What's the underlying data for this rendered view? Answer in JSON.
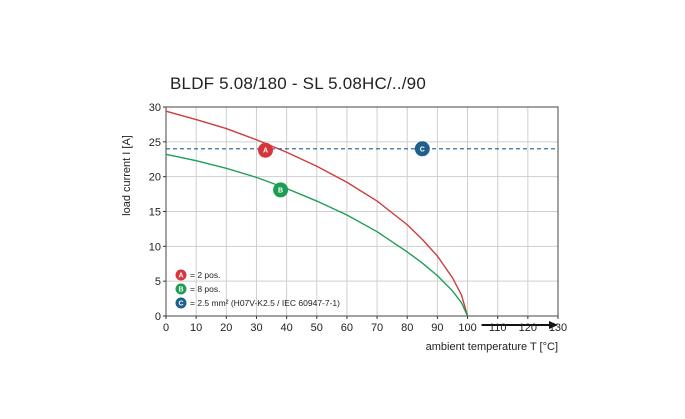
{
  "chart_data": {
    "type": "line",
    "title": "BLDF 5.08/180 - SL 5.08HC/../90",
    "xlabel": "ambient temperature T [°C]",
    "ylabel": "load current I [A]",
    "xlim": [
      0,
      130
    ],
    "ylim": [
      0,
      30
    ],
    "x_ticks": [
      "0",
      "10",
      "20",
      "30",
      "40",
      "50",
      "60",
      "70",
      "80",
      "90",
      "100",
      "110",
      "120",
      "130"
    ],
    "y_ticks": [
      "0",
      "5",
      "10",
      "15",
      "20",
      "25",
      "30"
    ],
    "grid": true,
    "series": [
      {
        "id": "A",
        "color": "#d03c3c",
        "x": [
          0,
          10,
          20,
          30,
          40,
          50,
          60,
          70,
          80,
          85,
          90,
          95,
          98,
          100
        ],
        "values": [
          29.4,
          28.2,
          26.9,
          25.3,
          23.5,
          21.5,
          19.2,
          16.5,
          13.1,
          11.0,
          8.6,
          5.5,
          3.0,
          0
        ]
      },
      {
        "id": "B",
        "color": "#1e9e55",
        "x": [
          0,
          10,
          20,
          30,
          40,
          50,
          60,
          70,
          80,
          85,
          90,
          95,
          98,
          100
        ],
        "values": [
          23.2,
          22.3,
          21.2,
          19.9,
          18.3,
          16.5,
          14.5,
          12.1,
          9.2,
          7.6,
          5.8,
          3.6,
          1.9,
          0
        ]
      },
      {
        "id": "C",
        "color": "#1f5f8b",
        "dashed": true,
        "x": [
          0,
          130
        ],
        "values": [
          24,
          24
        ]
      }
    ],
    "markers": [
      {
        "label": "A",
        "x": 33,
        "y": 23.8,
        "color": "#d8343c"
      },
      {
        "label": "B",
        "x": 38,
        "y": 18.1,
        "color": "#1e9e55"
      },
      {
        "label": "C",
        "x": 85,
        "y": 24.0,
        "color": "#1f5f8b"
      }
    ],
    "legend": {
      "placement": "bottom-left",
      "items": [
        {
          "badge": "A",
          "text": "= 2 pos.",
          "color": "#d8343c"
        },
        {
          "badge": "B",
          "text": "= 8 pos.",
          "color": "#1e9e55"
        },
        {
          "badge": "C",
          "text": "= 2.5 mm² (H07V-K2.5 / IEC 60947-7-1)",
          "color": "#1f5f8b"
        }
      ]
    },
    "axis_arrow": "right"
  }
}
